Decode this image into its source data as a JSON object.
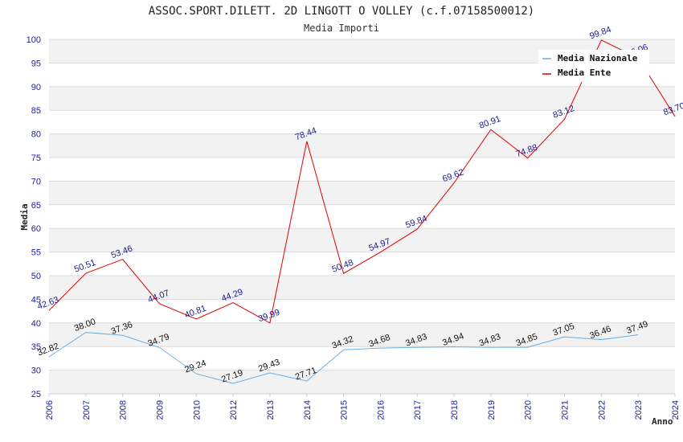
{
  "chart_data": {
    "type": "line",
    "title": "ASSOC.SPORT.DILETT. 2D LINGOTT O VOLLEY (c.f.07158500012)",
    "subtitle": "Media Importi",
    "xlabel": "Anno",
    "ylabel": "Media",
    "ylim": [
      25,
      100
    ],
    "ytick_step": 5,
    "grid": true,
    "legend_position": "top-right",
    "x": [
      "2006",
      "2007",
      "2008",
      "2009",
      "2010",
      "2012",
      "2013",
      "2014",
      "2015",
      "2016",
      "2017",
      "2018",
      "2019",
      "2020",
      "2021",
      "2022",
      "2023",
      "2024"
    ],
    "series": [
      {
        "name": "Media Nazionale",
        "color": "#6aaee0",
        "values": [
          32.82,
          38.0,
          37.36,
          34.79,
          29.24,
          27.19,
          29.43,
          27.71,
          34.32,
          34.68,
          34.83,
          34.94,
          34.83,
          34.85,
          37.05,
          36.46,
          37.49,
          null
        ],
        "labels": [
          "32.82",
          "38.00",
          "37.36",
          "34.79",
          "29.24",
          "27.19",
          "29.43",
          "27.71",
          "34.32",
          "34.68",
          "34.83",
          "34.94",
          "34.83",
          "34.85",
          "37.05",
          "36.46",
          "37.49",
          ""
        ]
      },
      {
        "name": "Media Ente",
        "color": "#e00000",
        "values": [
          42.63,
          50.51,
          53.46,
          44.07,
          40.81,
          44.29,
          39.99,
          78.44,
          50.48,
          54.97,
          59.84,
          69.62,
          80.91,
          74.88,
          83.12,
          99.84,
          96.06,
          83.7
        ],
        "labels": [
          "42.63",
          "50.51",
          "53.46",
          "44.07",
          "40.81",
          "44.29",
          "39.99",
          "78.44",
          "50.48",
          "54.97",
          "59.84",
          "69.62",
          "80.91",
          "74.88",
          "83.12",
          "99.84",
          "96.06",
          "83.70"
        ]
      }
    ]
  }
}
